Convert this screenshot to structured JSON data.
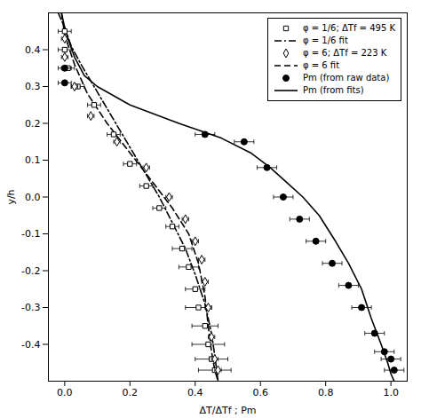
{
  "chart_data": {
    "type": "scatter",
    "xlabel": "ΔT/ΔTf ; Pm",
    "ylabel": "y/h",
    "xlim": [
      -0.05,
      1.05
    ],
    "ylim": [
      -0.5,
      0.5
    ],
    "xticks": [
      {
        "value": 0,
        "label": "0.0"
      },
      0.2,
      0.4,
      0.6,
      0.8,
      {
        "value": 1,
        "label": "1.0"
      }
    ],
    "yticks": [
      -0.4,
      -0.3,
      -0.2,
      -0.1,
      {
        "value": 0,
        "label": "0.0"
      },
      0.1,
      0.2,
      0.3,
      0.4
    ],
    "legend": "upper right",
    "series": [
      {
        "name": "φ = 1/6; ΔTf = 495 K",
        "type": "scatter",
        "marker": "open_square",
        "color": "black",
        "x": [
          0.0,
          0.0,
          0.01,
          0.04,
          0.09,
          0.15,
          0.2,
          0.25,
          0.29,
          0.33,
          0.36,
          0.38,
          0.4,
          0.41,
          0.43,
          0.44,
          0.45,
          0.46
        ],
        "values": [
          0.45,
          0.4,
          0.35,
          0.3,
          0.25,
          0.17,
          0.09,
          0.03,
          -0.03,
          -0.08,
          -0.14,
          -0.19,
          -0.25,
          -0.3,
          -0.35,
          -0.4,
          -0.44,
          -0.47
        ],
        "xerr": [
          0.02,
          0.02,
          0.02,
          0.02,
          0.02,
          0.02,
          0.02,
          0.02,
          0.02,
          0.02,
          0.03,
          0.03,
          0.03,
          0.04,
          0.04,
          0.05,
          0.05,
          0.05
        ]
      },
      {
        "name": "φ = 1/6 fit",
        "type": "line",
        "line_style": "dashdot",
        "color": "black",
        "x": [
          -0.02,
          0.0,
          0.02,
          0.05,
          0.09,
          0.13,
          0.17,
          0.21,
          0.25,
          0.29,
          0.33,
          0.37,
          0.4,
          0.43,
          0.45,
          0.46,
          0.47
        ],
        "values": [
          0.5,
          0.46,
          0.41,
          0.36,
          0.3,
          0.24,
          0.18,
          0.12,
          0.06,
          0.0,
          -0.07,
          -0.14,
          -0.21,
          -0.29,
          -0.37,
          -0.43,
          -0.5
        ]
      },
      {
        "name": "φ = 6; ΔTf = 223 K",
        "type": "scatter",
        "marker": "open_diamond",
        "color": "black",
        "x": [
          0.0,
          0.0,
          0.03,
          0.08,
          0.16,
          0.25,
          0.32,
          0.37,
          0.4,
          0.42,
          0.43,
          0.44,
          0.45,
          0.46,
          0.47
        ],
        "values": [
          0.43,
          0.38,
          0.3,
          0.22,
          0.15,
          0.08,
          0.0,
          -0.06,
          -0.12,
          -0.17,
          -0.23,
          -0.3,
          -0.38,
          -0.44,
          -0.47
        ],
        "xerr": [
          0.01,
          0.01,
          0.01,
          0.01,
          0.01,
          0.01,
          0.01,
          0.01,
          0.01,
          0.01,
          0.01,
          0.01,
          0.01,
          0.01,
          0.01
        ]
      },
      {
        "name": "φ = 6 fit",
        "type": "line",
        "line_style": "dashed",
        "color": "black",
        "x": [
          -0.01,
          0.0,
          0.03,
          0.07,
          0.13,
          0.2,
          0.27,
          0.33,
          0.38,
          0.41,
          0.43,
          0.44,
          0.45,
          0.46,
          0.47
        ],
        "values": [
          0.5,
          0.44,
          0.36,
          0.28,
          0.2,
          0.12,
          0.04,
          -0.03,
          -0.1,
          -0.18,
          -0.27,
          -0.35,
          -0.42,
          -0.47,
          -0.5
        ]
      },
      {
        "name": "Pm (from raw data)",
        "type": "scatter",
        "marker": "circle",
        "color": "black",
        "x": [
          0.0,
          0.0,
          0.43,
          0.55,
          0.62,
          0.67,
          0.72,
          0.77,
          0.82,
          0.87,
          0.91,
          0.95,
          0.98,
          1.0,
          1.01
        ],
        "values": [
          0.35,
          0.31,
          0.17,
          0.15,
          0.08,
          0.0,
          -0.06,
          -0.12,
          -0.18,
          -0.24,
          -0.3,
          -0.37,
          -0.42,
          -0.44,
          -0.47
        ],
        "xerr": [
          0.02,
          0.02,
          0.03,
          0.03,
          0.03,
          0.03,
          0.03,
          0.03,
          0.03,
          0.03,
          0.03,
          0.03,
          0.03,
          0.03,
          0.03
        ]
      },
      {
        "name": "Pm (from fits)",
        "type": "line",
        "line_style": "solid",
        "color": "black",
        "x": [
          -0.01,
          0.0,
          0.01,
          0.03,
          0.06,
          0.1,
          0.2,
          0.35,
          0.48,
          0.57,
          0.63,
          0.68,
          0.73,
          0.78,
          0.83,
          0.87,
          0.91,
          0.94,
          0.97,
          0.99,
          1.0,
          1.01
        ],
        "values": [
          0.5,
          0.46,
          0.43,
          0.38,
          0.33,
          0.3,
          0.25,
          0.2,
          0.16,
          0.12,
          0.08,
          0.04,
          0.0,
          -0.05,
          -0.12,
          -0.18,
          -0.25,
          -0.33,
          -0.4,
          -0.45,
          -0.48,
          -0.5
        ]
      }
    ]
  }
}
